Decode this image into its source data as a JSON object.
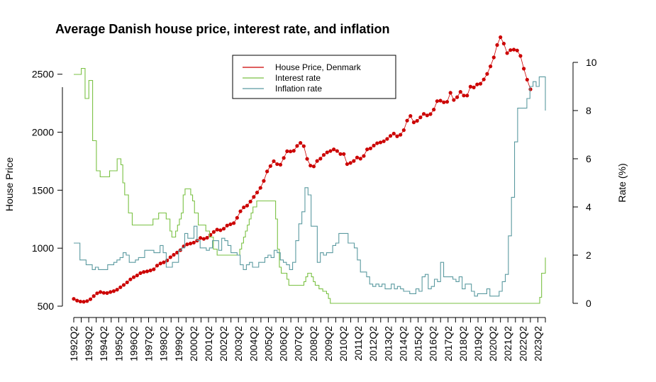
{
  "chart_data": {
    "type": "line",
    "title": "Average Danish house price, interest rate, and inflation",
    "ylabel_left": "House Price",
    "ylabel_right": "Rate (%)",
    "xlabel": "",
    "ylim_left": [
      500,
      2700
    ],
    "ylim_right": [
      0,
      10
    ],
    "yticks_left": [
      "500",
      "1000",
      "1500",
      "2000",
      "2500"
    ],
    "yticks_right": [
      "0",
      "2",
      "4",
      "6",
      "8",
      "10"
    ],
    "x_tick_labels": [
      "1992Q2",
      "1993Q2",
      "1994Q2",
      "1995Q2",
      "1996Q2",
      "1997Q2",
      "1998Q2",
      "1999Q2",
      "2000Q2",
      "2001Q2",
      "2002Q2",
      "2003Q2",
      "2004Q2",
      "2005Q2",
      "2006Q2",
      "2007Q2",
      "2008Q2",
      "2009Q2",
      "2010Q2",
      "2011Q2",
      "2012Q2",
      "2013Q2",
      "2014Q2",
      "2015Q2",
      "2016Q2",
      "2017Q2",
      "2018Q2",
      "2019Q2",
      "2020Q2",
      "2021Q2",
      "2022Q2",
      "2023Q2"
    ],
    "legend": {
      "position": "top-center",
      "entries": [
        {
          "label": "House Price, Denmark",
          "color": "#cc0000"
        },
        {
          "label": "Interest rate",
          "color": "#7ac143"
        },
        {
          "label": "Inflation rate",
          "color": "#5b9aa0"
        }
      ]
    },
    "series": [
      {
        "name": "House Price, Denmark",
        "axis": "left",
        "style": "points",
        "color": "#cc0000",
        "values": [
          563,
          548,
          540,
          538,
          544,
          560,
          587,
          611,
          622,
          615,
          613,
          622,
          630,
          642,
          663,
          683,
          705,
          731,
          750,
          765,
          785,
          795,
          800,
          808,
          818,
          850,
          868,
          878,
          894,
          922,
          943,
          962,
          983,
          1016,
          1033,
          1040,
          1048,
          1065,
          1088,
          1080,
          1090,
          1115,
          1140,
          1160,
          1155,
          1168,
          1195,
          1206,
          1216,
          1262,
          1318,
          1352,
          1367,
          1402,
          1442,
          1480,
          1520,
          1580,
          1662,
          1708,
          1750,
          1725,
          1720,
          1778,
          1836,
          1834,
          1840,
          1882,
          1908,
          1880,
          1770,
          1712,
          1705,
          1752,
          1772,
          1804,
          1826,
          1838,
          1852,
          1838,
          1812,
          1812,
          1725,
          1735,
          1752,
          1782,
          1772,
          1795,
          1852,
          1860,
          1885,
          1905,
          1912,
          1922,
          1942,
          1968,
          1988,
          1965,
          1978,
          2018,
          2100,
          2140,
          2085,
          2098,
          2128,
          2158,
          2145,
          2156,
          2195,
          2268,
          2272,
          2258,
          2262,
          2340,
          2278,
          2302,
          2348,
          2316,
          2316,
          2393,
          2386,
          2412,
          2418,
          2455,
          2503,
          2568,
          2645,
          2752,
          2819,
          2764,
          2682,
          2708,
          2712,
          2705,
          2658,
          2548,
          2453,
          2370
        ]
      },
      {
        "name": "Interest rate",
        "axis": "right",
        "style": "step",
        "color": "#7ac143",
        "values": [
          9.5,
          9.5,
          9.5,
          9.5,
          9.75,
          9.75,
          8.5,
          8.5,
          9.25,
          9.25,
          6.75,
          6.75,
          5.5,
          5.5,
          5.25,
          5.25,
          5.25,
          5.25,
          5.25,
          5.5,
          5.5,
          5.5,
          5.5,
          6.0,
          6.0,
          5.75,
          5.0,
          4.5,
          4.5,
          3.75,
          3.75,
          3.25,
          3.25,
          3.25,
          3.25,
          3.25,
          3.25,
          3.25,
          3.25,
          3.25,
          3.25,
          3.25,
          3.5,
          3.5,
          3.5,
          3.75,
          3.75,
          3.75,
          3.75,
          3.5,
          3.5,
          3.0,
          2.75,
          2.75,
          3.0,
          3.25,
          3.5,
          3.75,
          4.5,
          4.75,
          4.75,
          4.75,
          4.5,
          4.25,
          3.75,
          3.75,
          3.25,
          3.25,
          3.25,
          3.25,
          3.0,
          3.0,
          2.75,
          2.75,
          2.25,
          2.25,
          2.0,
          2.0,
          2.0,
          2.0,
          2.0,
          2.0,
          2.0,
          2.0,
          2.0,
          2.0,
          2.0,
          2.0,
          2.25,
          2.5,
          2.75,
          3.0,
          3.25,
          3.5,
          3.75,
          4.0,
          4.0,
          4.25,
          4.25,
          4.25,
          4.25,
          4.25,
          4.25,
          4.25,
          4.25,
          4.25,
          4.25,
          3.5,
          2.25,
          1.5,
          1.25,
          1.25,
          1.25,
          1.0,
          0.75,
          0.75,
          0.75,
          0.75,
          0.75,
          0.75,
          0.75,
          0.75,
          0.9,
          1.1,
          1.25,
          1.25,
          1.1,
          0.9,
          0.75,
          0.75,
          0.6,
          0.6,
          0.5,
          0.5,
          0.4,
          0.2,
          0.0,
          0.0,
          0.0,
          0.0,
          0.0,
          0.0,
          0.0,
          0.0,
          0.0,
          0.0,
          0.0,
          0.0,
          0.0,
          0.0,
          0.0,
          0.0,
          0.0,
          0.0,
          0.0,
          0.0,
          0.0,
          0.0,
          0.0,
          0.0,
          0.0,
          0.0,
          0.0,
          0.0,
          0.0,
          0.0,
          0.0,
          0.0,
          0.0,
          0.0,
          0.0,
          0.0,
          0.0,
          0.0,
          0.0,
          0.0,
          0.0,
          0.0,
          0.0,
          0.0,
          0.0,
          0.0,
          0.0,
          0.0,
          0.0,
          0.0,
          0.0,
          0.0,
          0.0,
          0.0,
          0.0,
          0.0,
          0.0,
          0.0,
          0.0,
          0.0,
          0.0,
          0.0,
          0.0,
          0.0,
          0.0,
          0.0,
          0.0,
          0.0,
          0.0,
          0.0,
          0.0,
          0.0,
          0.0,
          0.0,
          0.0,
          0.0,
          0.0,
          0.0,
          0.0,
          0.0,
          0.0,
          0.0,
          0.0,
          0.0,
          0.0,
          0.0,
          0.0,
          0.0,
          0.0,
          0.0,
          0.0,
          0.0,
          0.0,
          0.0,
          0.0,
          0.0,
          0.0,
          0.0,
          0.0,
          0.0,
          0.0,
          0.0,
          0.0,
          0.0,
          0.0,
          0.0,
          0.0,
          0.0,
          0.0,
          0.0,
          0.0,
          0.25,
          1.25,
          1.25,
          1.9
        ]
      },
      {
        "name": "Inflation rate",
        "axis": "right",
        "style": "step",
        "color": "#5b9aa0",
        "values": [
          2.5,
          2.5,
          1.8,
          1.8,
          1.6,
          1.6,
          1.4,
          1.5,
          1.4,
          1.4,
          1.4,
          1.6,
          1.6,
          1.7,
          1.8,
          1.9,
          2.1,
          2.0,
          1.7,
          1.7,
          1.8,
          1.9,
          1.9,
          2.2,
          2.2,
          2.2,
          2.1,
          2.1,
          2.4,
          2.1,
          1.5,
          1.5,
          1.7,
          1.7,
          2.2,
          2.3,
          2.9,
          2.7,
          2.7,
          3.2,
          2.6,
          2.3,
          2.3,
          2.2,
          2.3,
          2.6,
          2.6,
          2.2,
          2.7,
          2.6,
          2.4,
          2.1,
          2.1,
          2.0,
          1.6,
          1.4,
          1.6,
          1.7,
          1.5,
          1.5,
          1.7,
          1.7,
          1.9,
          2.0,
          1.9,
          2.2,
          2.1,
          1.8,
          1.7,
          1.6,
          1.4,
          1.7,
          2.6,
          3.3,
          3.8,
          4.8,
          4.5,
          3.2,
          3.2,
          1.7,
          2.1,
          2.0,
          2.1,
          2.1,
          2.4,
          2.5,
          2.9,
          2.9,
          2.9,
          2.5,
          2.5,
          2.3,
          1.8,
          1.3,
          1.3,
          1.1,
          0.8,
          0.7,
          0.8,
          0.7,
          0.8,
          0.6,
          0.6,
          0.8,
          0.6,
          0.7,
          0.6,
          0.5,
          0.5,
          0.4,
          0.4,
          0.6,
          0.5,
          1.1,
          1.2,
          0.6,
          0.7,
          1.0,
          0.9,
          1.7,
          1.1,
          1.1,
          1.1,
          1.0,
          0.9,
          1.1,
          0.6,
          0.8,
          0.8,
          0.5,
          0.3,
          0.4,
          0.4,
          0.4,
          0.6,
          0.3,
          0.3,
          0.3,
          0.5,
          0.9,
          1.2,
          2.8,
          4.4,
          6.7,
          8.1,
          8.1,
          8.1,
          8.5,
          9.0,
          9.2,
          9.0,
          9.4,
          9.4,
          8.0
        ]
      }
    ]
  }
}
